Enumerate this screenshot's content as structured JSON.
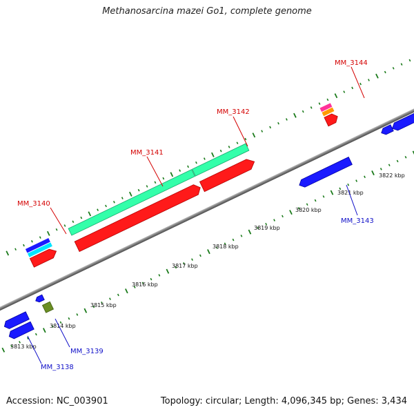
{
  "title": "Methanosarcina mazei Go1, complete genome",
  "footer": {
    "accession": "Accession: NC_003901",
    "summary": "Topology: circular; Length: 4,096,345 bp; Genes: 3,434"
  },
  "colors": {
    "backbone": "#8a8a8a",
    "tick": "#1a7a1a",
    "forward_label": "#d40000",
    "reverse_label": "#1010c8"
  },
  "scale": {
    "labels": [
      "3813 kbp",
      "3814 kbp",
      "3815 kbp",
      "3816 kbp",
      "3817 kbp",
      "3818 kbp",
      "3819 kbp",
      "3820 kbp",
      "3821 kbp",
      "3822 kbp"
    ]
  },
  "genes": {
    "forward": [
      {
        "label": "MM_3140",
        "color": "#d40000"
      },
      {
        "label": "MM_3141",
        "color": "#d40000"
      },
      {
        "label": "MM_3142",
        "color": "#d40000"
      },
      {
        "label": "MM_3144",
        "color": "#d40000"
      }
    ],
    "reverse": [
      {
        "label": "MM_3138",
        "color": "#1010c8"
      },
      {
        "label": "MM_3139",
        "color": "#1010c8"
      },
      {
        "label": "MM_3143",
        "color": "#1010c8"
      }
    ]
  },
  "feature_colors": {
    "gene": "#ff1a1a",
    "cds_forward": "#33ffaa",
    "cds_reverse": "#1a1aff",
    "cyan": "#00ffff",
    "magenta": "#ff3399",
    "orange": "#ff9900",
    "olive": "#6b8e23"
  }
}
